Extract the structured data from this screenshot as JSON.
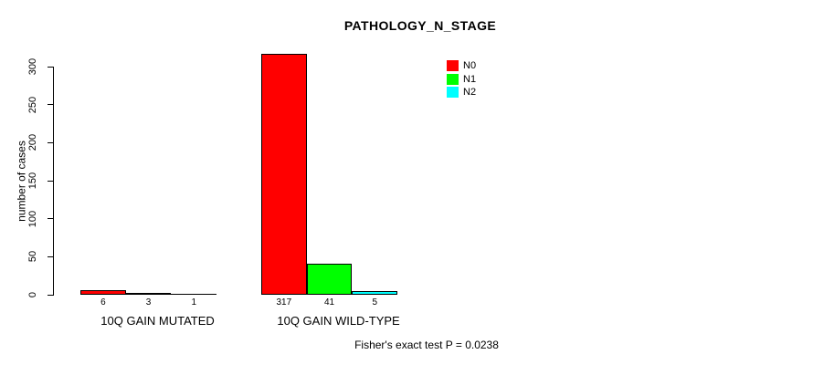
{
  "chart_data": {
    "type": "bar",
    "title": "PATHOLOGY_N_STAGE",
    "categories": [
      "10Q GAIN MUTATED",
      "10Q GAIN WILD-TYPE"
    ],
    "series": [
      {
        "name": "N0",
        "color": "#FF0000",
        "values": [
          6,
          317
        ]
      },
      {
        "name": "N1",
        "color": "#00FF00",
        "values": [
          3,
          41
        ]
      },
      {
        "name": "N2",
        "color": "#00FFFF",
        "values": [
          1,
          5
        ]
      }
    ],
    "xlabel": "",
    "ylabel": "number of cases",
    "ylim": [
      0,
      300
    ],
    "yticks": [
      0,
      50,
      100,
      150,
      200,
      250,
      300
    ],
    "bar_value_labels": [
      [
        6,
        3,
        1
      ],
      [
        317,
        41,
        5
      ]
    ],
    "grid": false,
    "legend_position": "top-right",
    "annotation": "Fisher's exact test P = 0.0238"
  }
}
